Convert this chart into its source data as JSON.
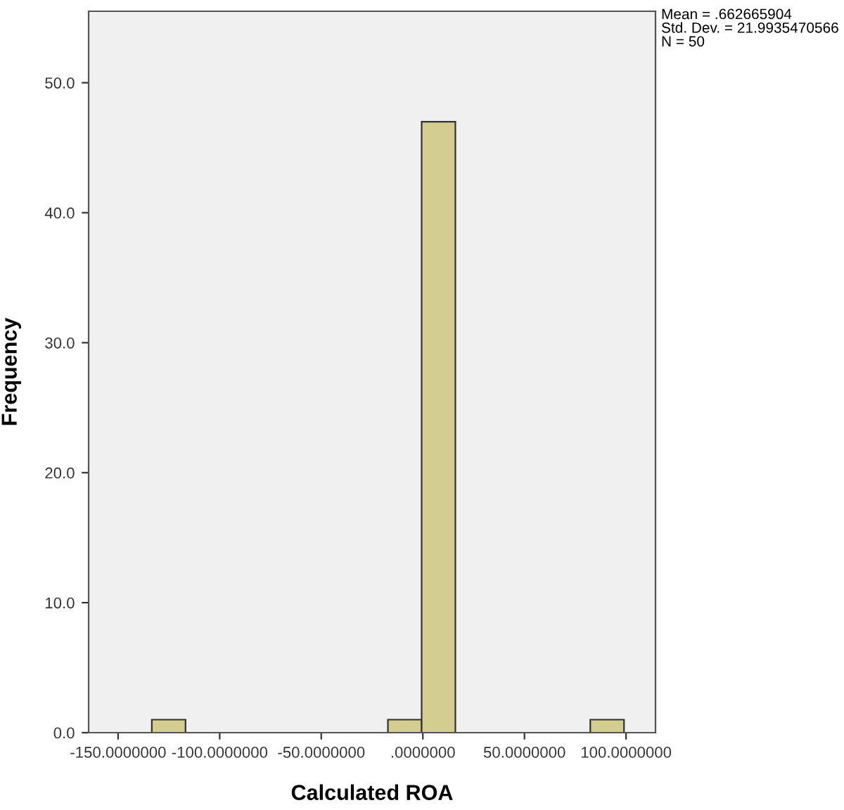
{
  "chart_data": {
    "type": "histogram",
    "xlabel": "Calculated ROA",
    "ylabel": "Frequency",
    "bins": [
      -133.4,
      -116.8,
      -100.2,
      -83.6,
      -67.0,
      -50.4,
      -33.8,
      -17.2,
      -0.6,
      16.0,
      32.6,
      49.2,
      65.8,
      82.4,
      99.0
    ],
    "values": [
      1,
      0,
      0,
      0,
      0,
      0,
      0,
      1,
      47,
      0,
      0,
      0,
      0,
      1
    ],
    "color": "#d3cd8f",
    "xlim": [
      -164.5,
      114.5
    ],
    "ylim": [
      0,
      55.5
    ],
    "xticks": [
      {
        "value": -150,
        "label": "-150.0000000"
      },
      {
        "value": -100,
        "label": "-100.0000000"
      },
      {
        "value": -50,
        "label": "-50.0000000"
      },
      {
        "value": 0,
        "label": ".0000000"
      },
      {
        "value": 50,
        "label": "50.0000000"
      },
      {
        "value": 100,
        "label": "100.0000000"
      }
    ],
    "yticks": [
      {
        "value": 0,
        "label": "0.0"
      },
      {
        "value": 10,
        "label": "10.0"
      },
      {
        "value": 20,
        "label": "20.0"
      },
      {
        "value": 30,
        "label": "30.0"
      },
      {
        "value": 40,
        "label": "40.0"
      },
      {
        "value": 50,
        "label": "50.0"
      }
    ],
    "annotations": [
      "Mean = .662665904\nStd. Dev. = 21.9935470566\nN = 50"
    ],
    "grid": false
  }
}
